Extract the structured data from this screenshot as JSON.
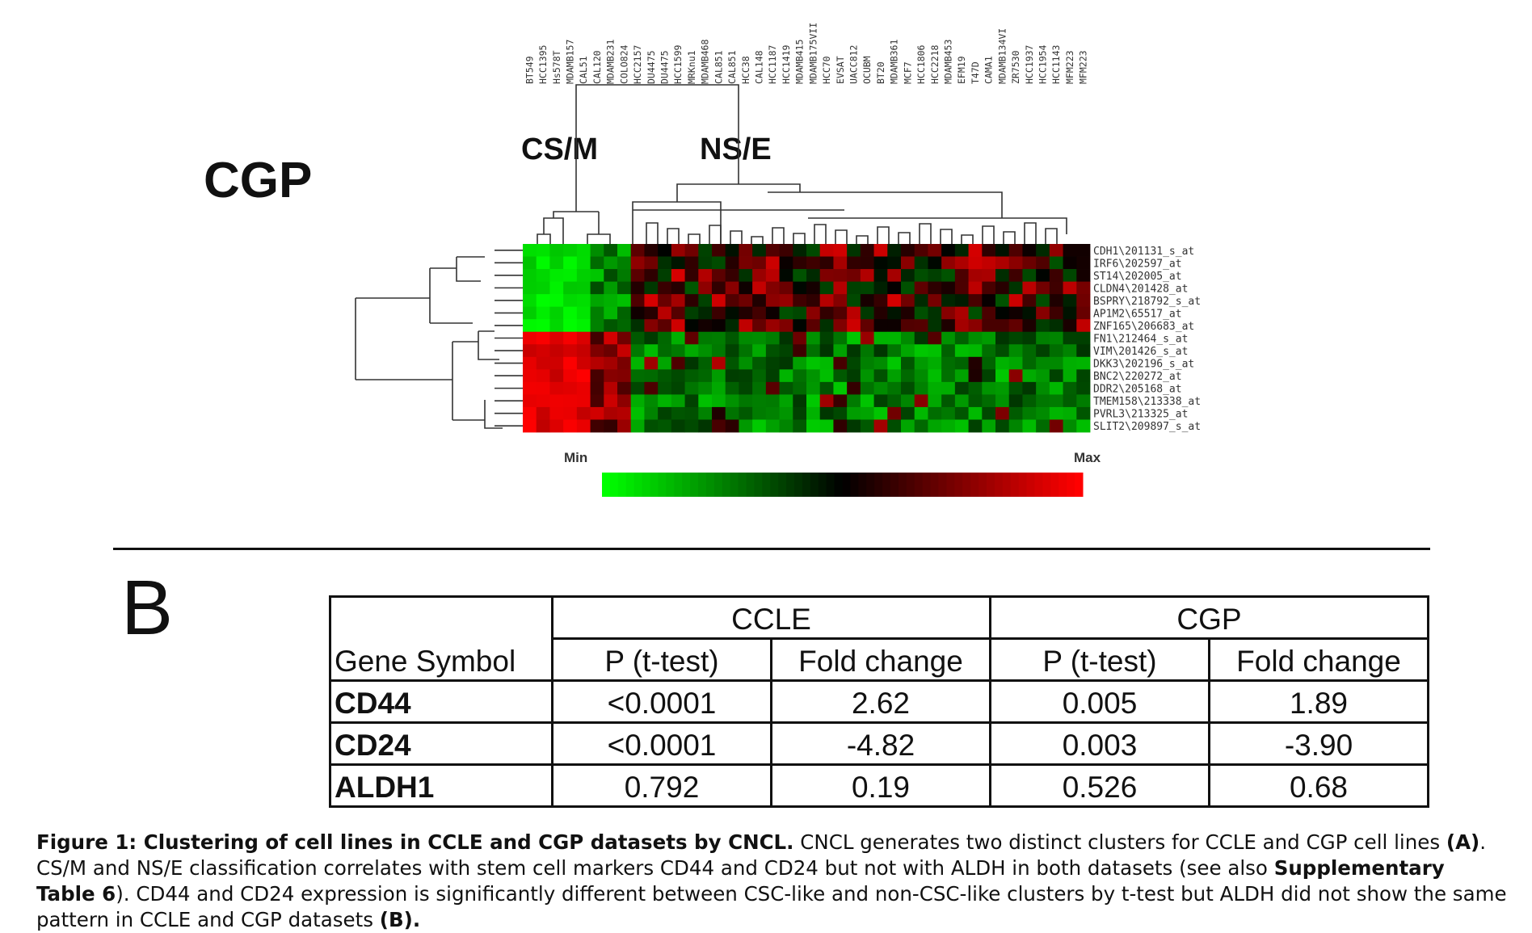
{
  "panel_a": {
    "dataset_label": "CGP",
    "cluster_labels": [
      "CS/M",
      "NS/E"
    ],
    "cell_lines": [
      "BT549",
      "HCC1395",
      "Hs578T",
      "MDAMB157",
      "CAL51",
      "CAL120",
      "MDAMB231",
      "COLO824",
      "HCC2157",
      "DU4475",
      "DU4475",
      "HCC1599",
      "MRKnu1",
      "MDAMB468",
      "CAL851",
      "CAL851",
      "HCC38",
      "CAL148",
      "HCC1187",
      "HCC1419",
      "MDAMB415",
      "MDAMB175VII",
      "HCC70",
      "EVSAT",
      "UACC812",
      "OCUBM",
      "BT20",
      "MDAMB361",
      "MCF7",
      "HCC1806",
      "HCC2218",
      "MDAMB453",
      "EFM19",
      "T47D",
      "CAMA1",
      "MDAMB134VI",
      "ZR7530",
      "HCC1937",
      "HCC1954",
      "HCC1143",
      "MFM223",
      "MFM223"
    ],
    "genes": [
      "CDH1\\201131_s_at",
      "IRF6\\202597_at",
      "ST14\\202005_at",
      "CLDN4\\201428_at",
      "BSPRY\\218792_s_at",
      "AP1M2\\65517_at",
      "ZNF165\\206683_at",
      "FN1\\212464_s_at",
      "VIM\\201426_s_at",
      "DKK3\\202196_s_at",
      "BNC2\\220272_at",
      "DDR2\\205168_at",
      "TMEM158\\213338_at",
      "PVRL3\\213325_at",
      "SLIT2\\209897_s_at"
    ],
    "scale_min_label": "Min",
    "scale_max_label": "Max",
    "colors": {
      "low": "#00ff00",
      "mid": "#000000",
      "high": "#ff0000"
    }
  },
  "panel_b": {
    "label": "B",
    "header_gene": "Gene Symbol",
    "groups": [
      "CCLE",
      "CGP"
    ],
    "columns": [
      "P (t-test)",
      "Fold change",
      "P (t-test)",
      "Fold change"
    ],
    "rows": [
      {
        "gene": "CD44",
        "values": [
          "<0.0001",
          "2.62",
          "0.005",
          "1.89"
        ]
      },
      {
        "gene": "CD24",
        "values": [
          "<0.0001",
          "-4.82",
          "0.003",
          "-3.90"
        ]
      },
      {
        "gene": "ALDH1",
        "values": [
          "0.792",
          "0.19",
          "0.526",
          "0.68"
        ]
      }
    ]
  },
  "caption": {
    "title": "Figure 1: Clustering of cell lines in CCLE and CGP datasets by CNCL.",
    "part1": " CNCL generates two distinct clusters for CCLE and CGP cell lines ",
    "ref_a": "(A)",
    "part2": ". CS/M and NS/E classification correlates with stem cell markers CD44 and CD24 but not with ALDH in both datasets (see also ",
    "supp": "Supplementary Table 6",
    "part3": "). CD44 and CD24 expression is significantly different between CSC-like and non-CSC-like clusters by t-test but ALDH did not show the same pattern in CCLE and CGP datasets ",
    "ref_b": "(B)."
  }
}
